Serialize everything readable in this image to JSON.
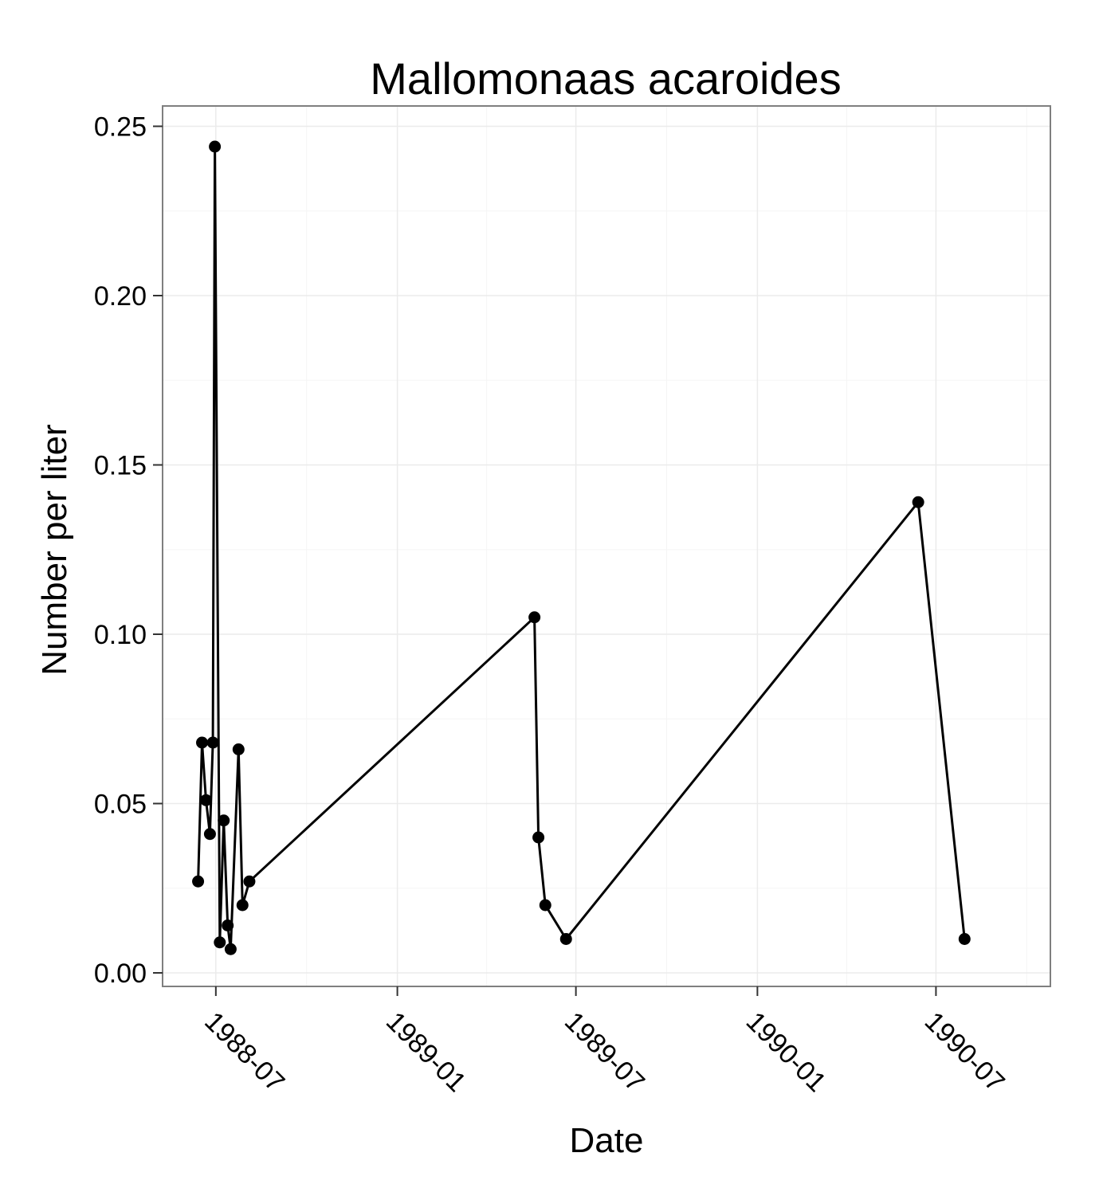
{
  "chart_data": {
    "type": "line",
    "title": "Mallomonaas acaroides",
    "xlabel": "Date",
    "ylabel": "Number per liter",
    "x_type": "date",
    "xlim": [
      "1988-05-08",
      "1990-10-25"
    ],
    "ylim": [
      -0.004,
      0.256
    ],
    "x_ticks": [
      "1988-07-01",
      "1989-01-01",
      "1989-07-01",
      "1990-01-01",
      "1990-07-01"
    ],
    "x_tick_labels": [
      "1988-07",
      "1989-01",
      "1989-07",
      "1990-01",
      "1990-07"
    ],
    "y_ticks": [
      0.0,
      0.05,
      0.1,
      0.15,
      0.2,
      0.25
    ],
    "y_tick_labels": [
      "0.00",
      "0.05",
      "0.10",
      "0.15",
      "0.20",
      "0.25"
    ],
    "grid": true,
    "colors": {
      "series": "#000000",
      "panel_border": "#7f7f7f",
      "grid_major": "#ebebeb",
      "grid_minor": "#f5f5f5"
    },
    "series": [
      {
        "x": [
          "1988-06-13",
          "1988-06-17",
          "1988-06-21",
          "1988-06-25",
          "1988-06-28",
          "1988-06-30",
          "1988-07-05",
          "1988-07-09",
          "1988-07-13",
          "1988-07-16",
          "1988-07-24",
          "1988-07-28",
          "1988-08-04",
          "1989-05-20",
          "1989-05-24",
          "1989-05-31",
          "1989-06-21",
          "1990-06-13",
          "1990-07-30"
        ],
        "y": [
          0.027,
          0.068,
          0.051,
          0.041,
          0.068,
          0.244,
          0.009,
          0.045,
          0.014,
          0.007,
          0.066,
          0.02,
          0.027,
          0.105,
          0.04,
          0.02,
          0.01,
          0.139,
          0.01
        ]
      }
    ]
  }
}
